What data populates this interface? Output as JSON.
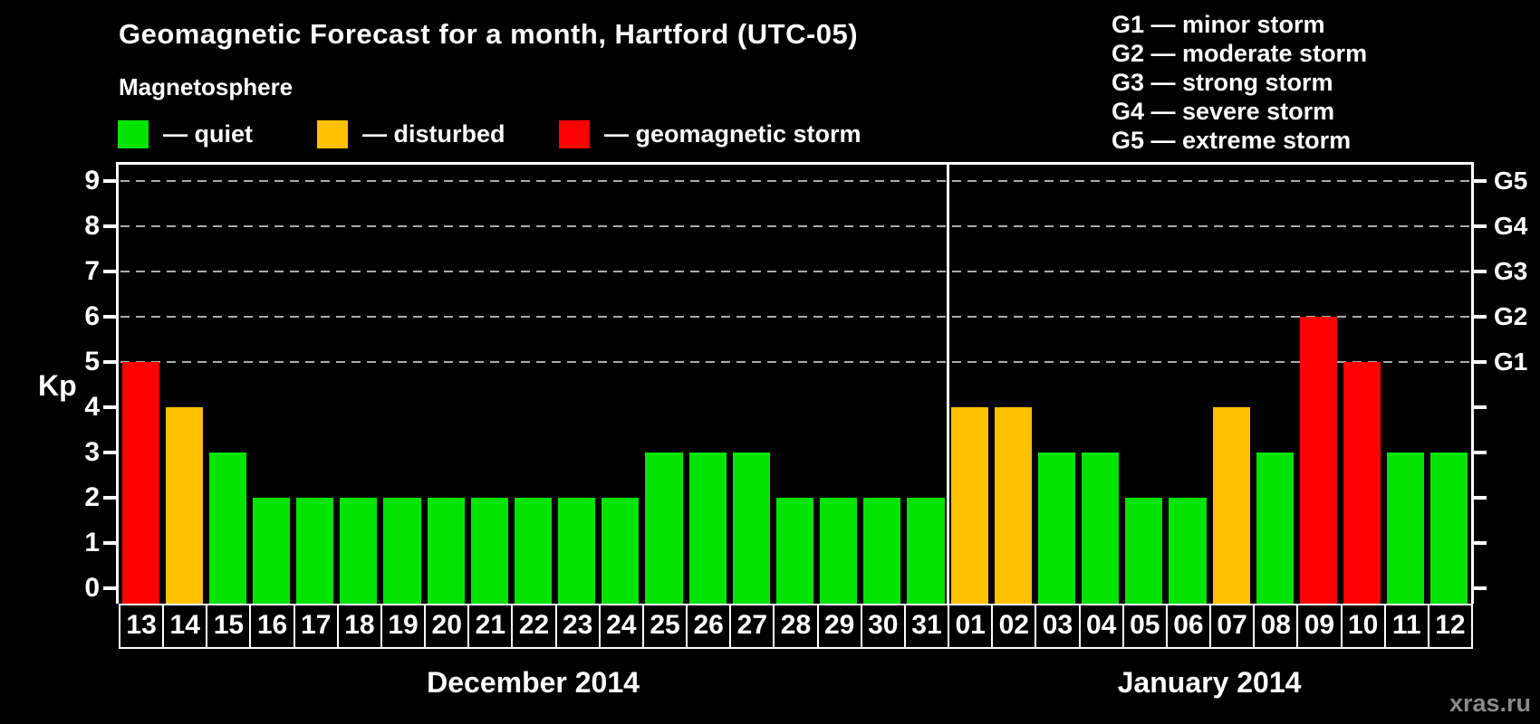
{
  "title": "Geomagnetic Forecast for a month, Hartford (UTC-05)",
  "subtitle": "Magnetosphere",
  "kp_axis_label": "Kp",
  "watermark": "xras.ru",
  "colors": {
    "quiet": "#00E400",
    "disturbed": "#FFC000",
    "storm": "#FF0000",
    "background": "#000000",
    "axis": "#FFFFFF",
    "grid": "#ABABAB",
    "watermark": "#8A8A8A"
  },
  "legend": [
    {
      "status": "quiet",
      "label": "— quiet"
    },
    {
      "status": "disturbed",
      "label": "— disturbed"
    },
    {
      "status": "storm",
      "label": "— geomagnetic storm"
    }
  ],
  "g_legend": [
    "G1 — minor storm",
    "G2 — moderate storm",
    "G3 — strong storm",
    "G4 — severe storm",
    "G5 — extreme storm"
  ],
  "chart_data": {
    "type": "bar",
    "title": "Geomagnetic Forecast for a month, Hartford (UTC-05)",
    "xlabel": "",
    "ylabel": "Kp",
    "ylim": [
      0,
      9
    ],
    "y_ticks": [
      0,
      1,
      2,
      3,
      4,
      5,
      6,
      7,
      8,
      9
    ],
    "grid_levels": [
      5,
      6,
      7,
      8,
      9
    ],
    "grid_style": "dashed",
    "legend_position": "top",
    "right_axis_labels": [
      {
        "label": "G1",
        "kp": 5
      },
      {
        "label": "G2",
        "kp": 6
      },
      {
        "label": "G3",
        "kp": 7
      },
      {
        "label": "G4",
        "kp": 8
      },
      {
        "label": "G5",
        "kp": 9
      }
    ],
    "months": [
      {
        "label": "December 2014",
        "days": [
          "13",
          "14",
          "15",
          "16",
          "17",
          "18",
          "19",
          "20",
          "21",
          "22",
          "23",
          "24",
          "25",
          "26",
          "27",
          "28",
          "29",
          "30",
          "31"
        ],
        "values": [
          5,
          4,
          3,
          2,
          2,
          2,
          2,
          2,
          2,
          2,
          2,
          2,
          3,
          3,
          3,
          2,
          2,
          2,
          2
        ],
        "statuses": [
          "storm",
          "disturbed",
          "quiet",
          "quiet",
          "quiet",
          "quiet",
          "quiet",
          "quiet",
          "quiet",
          "quiet",
          "quiet",
          "quiet",
          "quiet",
          "quiet",
          "quiet",
          "quiet",
          "quiet",
          "quiet",
          "quiet"
        ]
      },
      {
        "label": "January 2014",
        "days": [
          "01",
          "02",
          "03",
          "04",
          "05",
          "06",
          "07",
          "08",
          "09",
          "10",
          "11",
          "12"
        ],
        "values": [
          4,
          4,
          3,
          3,
          2,
          2,
          4,
          3,
          6,
          5,
          3,
          3
        ],
        "statuses": [
          "disturbed",
          "disturbed",
          "quiet",
          "quiet",
          "quiet",
          "quiet",
          "disturbed",
          "quiet",
          "storm",
          "storm",
          "quiet",
          "quiet"
        ]
      }
    ]
  }
}
